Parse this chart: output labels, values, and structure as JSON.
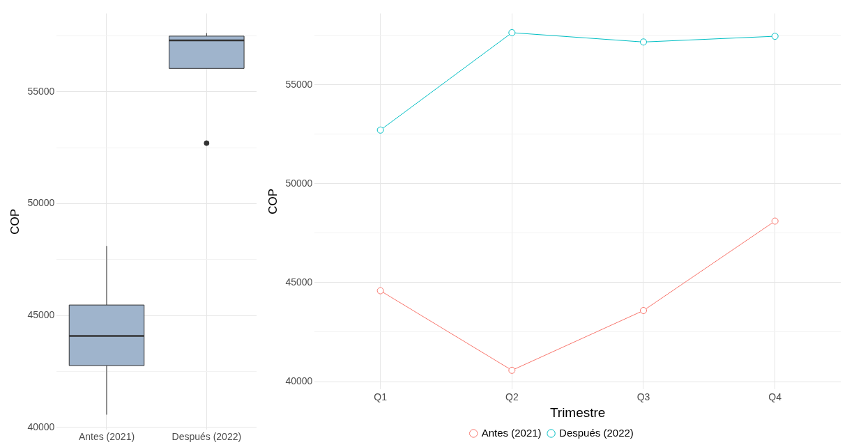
{
  "chart_data": [
    {
      "type": "box",
      "categories": [
        "Antes (2021)",
        "Después (2022)"
      ],
      "ylabel": "COP",
      "ylim": [
        39900,
        58500
      ],
      "yticks": [
        40000,
        {
          "value": 42500,
          "label": null
        },
        45000,
        {
          "value": 47500,
          "label": null
        },
        50000,
        {
          "value": 52500,
          "label": null
        },
        55000,
        {
          "value": 57500,
          "label": null
        }
      ],
      "grid": true,
      "series": [
        {
          "color": "#9fb4cc",
          "boxes": [
            {
              "low": 40574,
              "q1": 42766,
              "median": 44092,
              "q3": 45473,
              "high": 48112
            },
            {
              "low": 56045,
              "q1": 56045,
              "median": 57301,
              "q3": 57490,
              "high": 57625,
              "outliers": [
                52707
              ]
            }
          ]
        }
      ]
    },
    {
      "type": "line",
      "categories": [
        "Q1",
        "Q2",
        "Q3",
        "Q4"
      ],
      "xlabel": "Trimestre",
      "ylabel": "COP",
      "ylim": [
        39600,
        58600
      ],
      "yticks": [
        40000,
        {
          "value": 42500,
          "label": null
        },
        45000,
        {
          "value": 47500,
          "label": null
        },
        50000,
        {
          "value": 52500,
          "label": null
        },
        55000,
        {
          "value": 57500,
          "label": null
        }
      ],
      "grid": true,
      "legend": "bottom",
      "marker": "circle",
      "series": [
        {
          "name": "Antes (2021)",
          "color": "#f8766d",
          "values": [
            44590,
            40570,
            43590,
            48110
          ]
        },
        {
          "name": "Después (2022)",
          "color": "#00bfc4",
          "values": [
            52710,
            57630,
            57160,
            57450
          ]
        }
      ]
    }
  ]
}
